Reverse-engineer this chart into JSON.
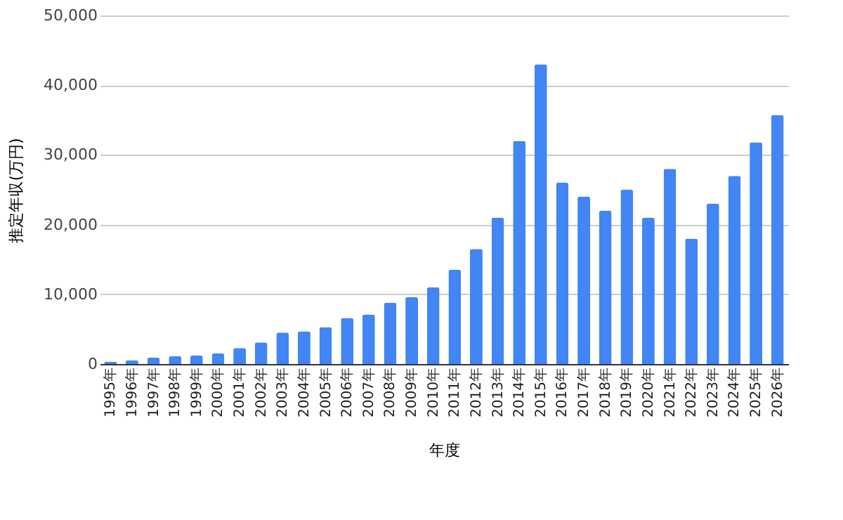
{
  "chart_data": {
    "type": "bar",
    "xlabel": "年度",
    "ylabel": "推定年収(万円)",
    "categories": [
      "1995年",
      "1996年",
      "1997年",
      "1998年",
      "1999年",
      "2000年",
      "2001年",
      "2002年",
      "2003年",
      "2004年",
      "2005年",
      "2006年",
      "2007年",
      "2008年",
      "2009年",
      "2010年",
      "2011年",
      "2012年",
      "2013年",
      "2014年",
      "2015年",
      "2016年",
      "2017年",
      "2018年",
      "2019年",
      "2020年",
      "2021年",
      "2022年",
      "2023年",
      "2024年",
      "2025年",
      "2026年"
    ],
    "values": [
      300,
      500,
      900,
      1100,
      1200,
      1500,
      2300,
      3100,
      4500,
      4700,
      5300,
      6600,
      7100,
      8800,
      9600,
      11000,
      13500,
      16500,
      21000,
      32000,
      43000,
      26000,
      24000,
      22000,
      25000,
      21000,
      28000,
      18000,
      23000,
      27000,
      31800,
      35700
    ],
    "color": "#4285f4",
    "ylim": [
      0,
      50000
    ],
    "yticks": [
      0,
      {
        "value": 10000,
        "label": "10,000"
      },
      {
        "value": 20000,
        "label": "20,000"
      },
      {
        "value": 30000,
        "label": "30,000"
      },
      {
        "value": 40000,
        "label": "40,000"
      },
      {
        "value": 50000,
        "label": "50,000"
      }
    ],
    "grid": "y"
  }
}
